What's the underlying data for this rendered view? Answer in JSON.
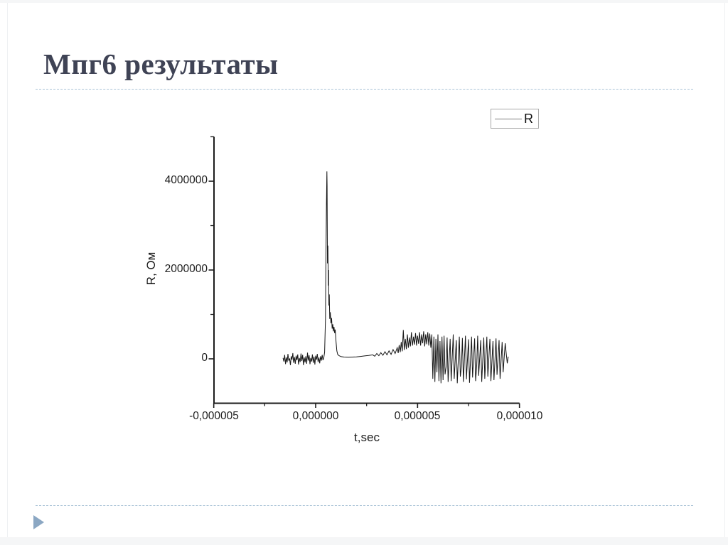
{
  "slide": {
    "title": "Мпг6 результаты"
  },
  "chart_data": {
    "type": "line",
    "title": "",
    "legend": {
      "position": "top-right",
      "entries": [
        {
          "label": "R",
          "line_color": "#7d7d7d"
        }
      ]
    },
    "x_axis": {
      "label": "t,sec",
      "range_sec": [
        -5e-06,
        1e-05
      ],
      "major_ticks": [
        {
          "value_sec": -5e-06,
          "label": "-0,000005"
        },
        {
          "value_sec": 0,
          "label": "0,000000"
        },
        {
          "value_sec": 5e-06,
          "label": "0,000005"
        },
        {
          "value_sec": 1e-05,
          "label": "0,000010"
        }
      ],
      "minor_ticks_sec": [
        -2.5e-06,
        2.5e-06,
        7.5e-06
      ]
    },
    "y_axis": {
      "label": "R, Ом",
      "range_ohm": [
        -1000000,
        5000000
      ],
      "major_ticks": [
        {
          "value_ohm": 0,
          "label": "0"
        },
        {
          "value_ohm": 2000000,
          "label": "2000000"
        },
        {
          "value_ohm": 4000000,
          "label": "4000000"
        }
      ],
      "minor_ticks_ohm": [
        1000000,
        3000000,
        5000000
      ]
    },
    "grid": false,
    "series": [
      {
        "name": "R",
        "color": "#161616",
        "peak_ohm": 4220000,
        "peak_t_us": 0.55,
        "points_us_ohm": [
          [
            -1.6,
            20000
          ],
          [
            -1.56,
            -60000
          ],
          [
            -1.52,
            90000
          ],
          [
            -1.48,
            -120000
          ],
          [
            -1.44,
            30000
          ],
          [
            -1.4,
            -80000
          ],
          [
            -1.36,
            110000
          ],
          [
            -1.32,
            -40000
          ],
          [
            -1.28,
            10000
          ],
          [
            -1.24,
            -140000
          ],
          [
            -1.2,
            60000
          ],
          [
            -1.16,
            -20000
          ],
          [
            -1.12,
            130000
          ],
          [
            -1.08,
            -90000
          ],
          [
            -1.04,
            40000
          ],
          [
            -1.0,
            -110000
          ],
          [
            -0.96,
            70000
          ],
          [
            -0.92,
            -30000
          ],
          [
            -0.88,
            100000
          ],
          [
            -0.84,
            -130000
          ],
          [
            -0.8,
            20000
          ],
          [
            -0.76,
            -70000
          ],
          [
            -0.72,
            120000
          ],
          [
            -0.68,
            -50000
          ],
          [
            -0.64,
            90000
          ],
          [
            -0.6,
            -140000
          ],
          [
            -0.56,
            30000
          ],
          [
            -0.52,
            -80000
          ],
          [
            -0.48,
            60000
          ],
          [
            -0.44,
            -110000
          ],
          [
            -0.4,
            140000
          ],
          [
            -0.36,
            -40000
          ],
          [
            -0.32,
            80000
          ],
          [
            -0.28,
            -120000
          ],
          [
            -0.24,
            20000
          ],
          [
            -0.2,
            -60000
          ],
          [
            -0.16,
            100000
          ],
          [
            -0.12,
            -90000
          ],
          [
            -0.08,
            50000
          ],
          [
            -0.04,
            -130000
          ],
          [
            0.0,
            70000
          ],
          [
            0.04,
            -20000
          ],
          [
            0.08,
            110000
          ],
          [
            0.12,
            -70000
          ],
          [
            0.16,
            30000
          ],
          [
            0.2,
            -100000
          ],
          [
            0.24,
            60000
          ],
          [
            0.28,
            -40000
          ],
          [
            0.32,
            90000
          ],
          [
            0.36,
            -30000
          ],
          [
            0.4,
            30000
          ],
          [
            0.44,
            150000
          ],
          [
            0.48,
            900000
          ],
          [
            0.5,
            2000000
          ],
          [
            0.53,
            3500000
          ],
          [
            0.55,
            4220000
          ],
          [
            0.56,
            3900000
          ],
          [
            0.57,
            3100000
          ],
          [
            0.58,
            2150000
          ],
          [
            0.6,
            2550000
          ],
          [
            0.62,
            1650000
          ],
          [
            0.63,
            2000000
          ],
          [
            0.65,
            1200000
          ],
          [
            0.67,
            1450000
          ],
          [
            0.69,
            900000
          ],
          [
            0.72,
            1050000
          ],
          [
            0.75,
            800000
          ],
          [
            0.78,
            920000
          ],
          [
            0.81,
            680000
          ],
          [
            0.84,
            780000
          ],
          [
            0.87,
            620000
          ],
          [
            0.9,
            720000
          ],
          [
            0.93,
            580000
          ],
          [
            0.96,
            660000
          ],
          [
            1.0,
            380000
          ],
          [
            1.04,
            180000
          ],
          [
            1.08,
            100000
          ],
          [
            1.15,
            70000
          ],
          [
            1.25,
            50000
          ],
          [
            1.4,
            40000
          ],
          [
            1.6,
            35000
          ],
          [
            1.8,
            40000
          ],
          [
            2.0,
            45000
          ],
          [
            2.2,
            55000
          ],
          [
            2.4,
            65000
          ],
          [
            2.6,
            75000
          ],
          [
            2.8,
            90000
          ],
          [
            2.9,
            60000
          ],
          [
            3.0,
            120000
          ],
          [
            3.1,
            70000
          ],
          [
            3.2,
            140000
          ],
          [
            3.3,
            80000
          ],
          [
            3.4,
            160000
          ],
          [
            3.5,
            90000
          ],
          [
            3.6,
            180000
          ],
          [
            3.7,
            100000
          ],
          [
            3.8,
            210000
          ],
          [
            3.9,
            120000
          ],
          [
            4.0,
            250000
          ],
          [
            4.05,
            130000
          ],
          [
            4.1,
            310000
          ],
          [
            4.15,
            150000
          ],
          [
            4.2,
            380000
          ],
          [
            4.25,
            170000
          ],
          [
            4.3,
            650000
          ],
          [
            4.35,
            200000
          ],
          [
            4.4,
            450000
          ],
          [
            4.45,
            220000
          ],
          [
            4.5,
            550000
          ],
          [
            4.55,
            250000
          ],
          [
            4.6,
            480000
          ],
          [
            4.65,
            280000
          ],
          [
            4.7,
            600000
          ],
          [
            4.75,
            300000
          ],
          [
            4.8,
            500000
          ],
          [
            4.85,
            320000
          ],
          [
            4.9,
            580000
          ],
          [
            4.95,
            300000
          ],
          [
            5.0,
            520000
          ],
          [
            5.05,
            340000
          ],
          [
            5.1,
            600000
          ],
          [
            5.15,
            300000
          ],
          [
            5.2,
            550000
          ],
          [
            5.25,
            350000
          ],
          [
            5.3,
            620000
          ],
          [
            5.35,
            280000
          ],
          [
            5.4,
            550000
          ],
          [
            5.45,
            330000
          ],
          [
            5.5,
            600000
          ],
          [
            5.55,
            300000
          ],
          [
            5.6,
            570000
          ],
          [
            5.65,
            250000
          ],
          [
            5.7,
            550000
          ],
          [
            5.75,
            -450000
          ],
          [
            5.8,
            500000
          ],
          [
            5.85,
            -520000
          ],
          [
            5.9,
            450000
          ],
          [
            5.95,
            -300000
          ],
          [
            6.0,
            550000
          ],
          [
            6.05,
            -500000
          ],
          [
            6.1,
            400000
          ],
          [
            6.15,
            -550000
          ],
          [
            6.2,
            500000
          ],
          [
            6.25,
            -480000
          ],
          [
            6.3,
            520000
          ],
          [
            6.35,
            -350000
          ],
          [
            6.4,
            -180000
          ],
          [
            6.45,
            480000
          ],
          [
            6.5,
            -520000
          ],
          [
            6.6,
            450000
          ],
          [
            6.65,
            -500000
          ],
          [
            6.75,
            550000
          ],
          [
            6.8,
            -450000
          ],
          [
            6.9,
            420000
          ],
          [
            6.95,
            -550000
          ],
          [
            7.05,
            500000
          ],
          [
            7.1,
            -400000
          ],
          [
            7.15,
            -180000
          ],
          [
            7.2,
            470000
          ],
          [
            7.25,
            -520000
          ],
          [
            7.35,
            520000
          ],
          [
            7.4,
            -460000
          ],
          [
            7.5,
            440000
          ],
          [
            7.55,
            -540000
          ],
          [
            7.65,
            500000
          ],
          [
            7.7,
            -420000
          ],
          [
            7.8,
            460000
          ],
          [
            7.85,
            -500000
          ],
          [
            7.9,
            -160000
          ],
          [
            7.95,
            520000
          ],
          [
            8.0,
            -380000
          ],
          [
            8.1,
            420000
          ],
          [
            8.15,
            -520000
          ],
          [
            8.25,
            480000
          ],
          [
            8.3,
            -450000
          ],
          [
            8.4,
            500000
          ],
          [
            8.45,
            -400000
          ],
          [
            8.55,
            450000
          ],
          [
            8.6,
            -500000
          ],
          [
            8.7,
            400000
          ],
          [
            8.75,
            -480000
          ],
          [
            8.85,
            460000
          ],
          [
            8.9,
            -360000
          ],
          [
            9.0,
            420000
          ],
          [
            9.05,
            -450000
          ],
          [
            9.15,
            380000
          ],
          [
            9.2,
            -300000
          ],
          [
            9.3,
            350000
          ],
          [
            9.4,
            -100000
          ],
          [
            9.45,
            50000
          ]
        ]
      }
    ],
    "colors": {
      "axis": "#1c1c1c",
      "trace": "#161616",
      "title_text": "#3f4355",
      "dashed_rule": "#a9c3d6",
      "arrow": "#8ba7c3"
    }
  }
}
